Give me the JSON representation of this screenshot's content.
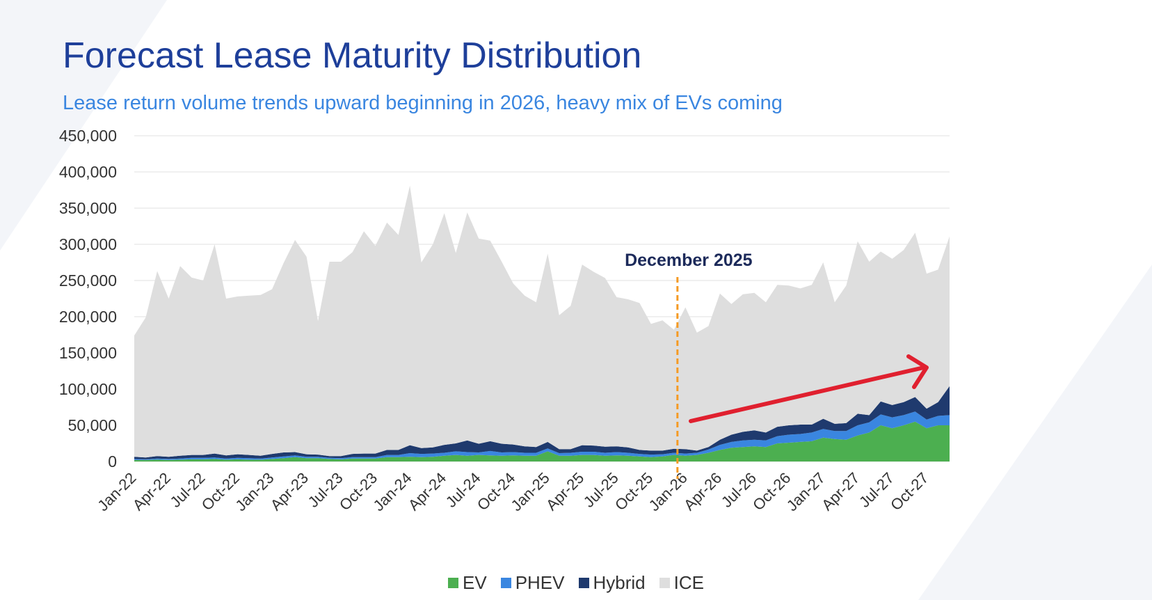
{
  "title": "Forecast Lease Maturity Distribution",
  "subtitle": "Lease return volume trends upward beginning in 2026, heavy mix of EVs coming",
  "annotation": {
    "label": "December 2025",
    "month": "Dec-25",
    "color": "#f59a23"
  },
  "colors": {
    "EV": "#4caf50",
    "PHEV": "#3a86e0",
    "Hybrid": "#1f3a6e",
    "ICE": "#dedede",
    "arrow": "#e0202f",
    "title": "#1e3f9a",
    "subtitle": "#3a86e0"
  },
  "chart_data": {
    "type": "area",
    "stacked": true,
    "title": "Forecast Lease Maturity Distribution",
    "subtitle": "Lease return volume trends upward beginning in 2026, heavy mix of EVs coming",
    "xlabel": "",
    "ylabel": "",
    "ylim": [
      0,
      450000
    ],
    "y_ticks": [
      "0",
      "50,000",
      "100,000",
      "150,000",
      "200,000",
      "250,000",
      "300,000",
      "350,000",
      "400,000",
      "450,000"
    ],
    "y_tick_values": [
      0,
      50000,
      100000,
      150000,
      200000,
      250000,
      300000,
      350000,
      400000,
      450000
    ],
    "x_tick_labels": [
      "Jan-22",
      "Apr-22",
      "Jul-22",
      "Oct-22",
      "Jan-23",
      "Apr-23",
      "Jul-23",
      "Oct-23",
      "Jan-24",
      "Apr-24",
      "Jul-24",
      "Oct-24",
      "Jan-25",
      "Apr-25",
      "Jul-25",
      "Oct-25",
      "Jan-26",
      "Apr-26",
      "Jul-26",
      "Oct-26",
      "Jan-27",
      "Apr-27",
      "Jul-27",
      "Oct-27"
    ],
    "grid": true,
    "legend_position": "bottom-center",
    "categories": [
      "Jan-22",
      "Feb-22",
      "Mar-22",
      "Apr-22",
      "May-22",
      "Jun-22",
      "Jul-22",
      "Aug-22",
      "Sep-22",
      "Oct-22",
      "Nov-22",
      "Dec-22",
      "Jan-23",
      "Feb-23",
      "Mar-23",
      "Apr-23",
      "May-23",
      "Jun-23",
      "Jul-23",
      "Aug-23",
      "Sep-23",
      "Oct-23",
      "Nov-23",
      "Dec-23",
      "Jan-24",
      "Feb-24",
      "Mar-24",
      "Apr-24",
      "May-24",
      "Jun-24",
      "Jul-24",
      "Aug-24",
      "Sep-24",
      "Oct-24",
      "Nov-24",
      "Dec-24",
      "Jan-25",
      "Feb-25",
      "Mar-25",
      "Apr-25",
      "May-25",
      "Jun-25",
      "Jul-25",
      "Aug-25",
      "Sep-25",
      "Oct-25",
      "Nov-25",
      "Dec-25",
      "Jan-26",
      "Feb-26",
      "Mar-26",
      "Apr-26",
      "May-26",
      "Jun-26",
      "Jul-26",
      "Aug-26",
      "Sep-26",
      "Oct-26",
      "Nov-26",
      "Dec-26",
      "Jan-27",
      "Feb-27",
      "Mar-27",
      "Apr-27",
      "May-27",
      "Jun-27",
      "Jul-27",
      "Aug-27",
      "Sep-27",
      "Oct-27",
      "Nov-27",
      "Dec-27"
    ],
    "series": [
      {
        "name": "EV",
        "values": [
          2000,
          2000,
          2500,
          2000,
          2500,
          3000,
          3000,
          3500,
          2500,
          3000,
          2500,
          2500,
          3500,
          4500,
          6000,
          4500,
          4500,
          3500,
          3000,
          4000,
          4000,
          4000,
          6000,
          6000,
          6500,
          6000,
          6500,
          8000,
          9000,
          8000,
          9000,
          8500,
          8000,
          8500,
          8000,
          8000,
          14000,
          8000,
          8000,
          9000,
          9000,
          8000,
          8500,
          8000,
          7000,
          6000,
          7000,
          9000,
          8000,
          9000,
          12000,
          16000,
          19000,
          20000,
          21000,
          20000,
          25000,
          26000,
          27000,
          28000,
          33000,
          31000,
          30000,
          36000,
          40000,
          50000,
          46000,
          50000,
          55000,
          46000,
          50000,
          50000
        ]
      },
      {
        "name": "PHEV",
        "values": [
          1500,
          1000,
          1500,
          1500,
          1500,
          2000,
          2000,
          2000,
          1500,
          2000,
          2000,
          1500,
          2000,
          2500,
          2500,
          2000,
          2000,
          1500,
          1500,
          2000,
          2000,
          2000,
          3000,
          3000,
          5000,
          4500,
          4500,
          4000,
          5000,
          5000,
          3500,
          6000,
          4500,
          4500,
          4000,
          4000,
          4000,
          3500,
          4000,
          4500,
          4500,
          4000,
          4500,
          4000,
          3500,
          3500,
          3000,
          3000,
          3000,
          3000,
          4500,
          7000,
          8000,
          9000,
          9000,
          9000,
          10000,
          11000,
          11000,
          12000,
          12000,
          11000,
          12000,
          14000,
          14000,
          15000,
          15000,
          14000,
          14000,
          12000,
          13000,
          14000
        ]
      },
      {
        "name": "Hybrid",
        "values": [
          3000,
          2500,
          3500,
          3000,
          4000,
          4000,
          4000,
          5500,
          4500,
          5000,
          4500,
          4000,
          5000,
          5500,
          4500,
          3500,
          3000,
          2500,
          3000,
          4500,
          5000,
          5000,
          7000,
          7000,
          11000,
          8000,
          8500,
          11000,
          11000,
          16000,
          12000,
          13500,
          12000,
          10500,
          9000,
          8000,
          9000,
          5500,
          5000,
          9000,
          8500,
          8500,
          8000,
          7500,
          5500,
          5500,
          5000,
          5500,
          6000,
          3000,
          3500,
          7000,
          10000,
          12000,
          13000,
          11000,
          13000,
          13000,
          13000,
          11000,
          14000,
          10000,
          11000,
          16000,
          10000,
          18000,
          17000,
          18000,
          20000,
          15000,
          19000,
          40000
        ]
      },
      {
        "name": "ICE",
        "values": [
          167500,
          193500,
          255500,
          218500,
          262000,
          245000,
          241000,
          289000,
          216500,
          218000,
          220000,
          222000,
          227500,
          261500,
          293000,
          273000,
          184500,
          268500,
          268500,
          278500,
          307000,
          287000,
          314000,
          297000,
          358500,
          256500,
          280500,
          320000,
          263000,
          315000,
          283500,
          277000,
          251500,
          222500,
          208000,
          200000,
          260000,
          185000,
          198000,
          249500,
          240000,
          233000,
          206000,
          204500,
          203000,
          175000,
          180000,
          164500,
          196000,
          163000,
          167000,
          202000,
          180500,
          190000,
          190000,
          180000,
          196000,
          193000,
          188000,
          193000,
          216000,
          168000,
          190000,
          238000,
          212000,
          207000,
          202000,
          210000,
          227000,
          186500,
          183000,
          207000
        ]
      }
    ]
  }
}
